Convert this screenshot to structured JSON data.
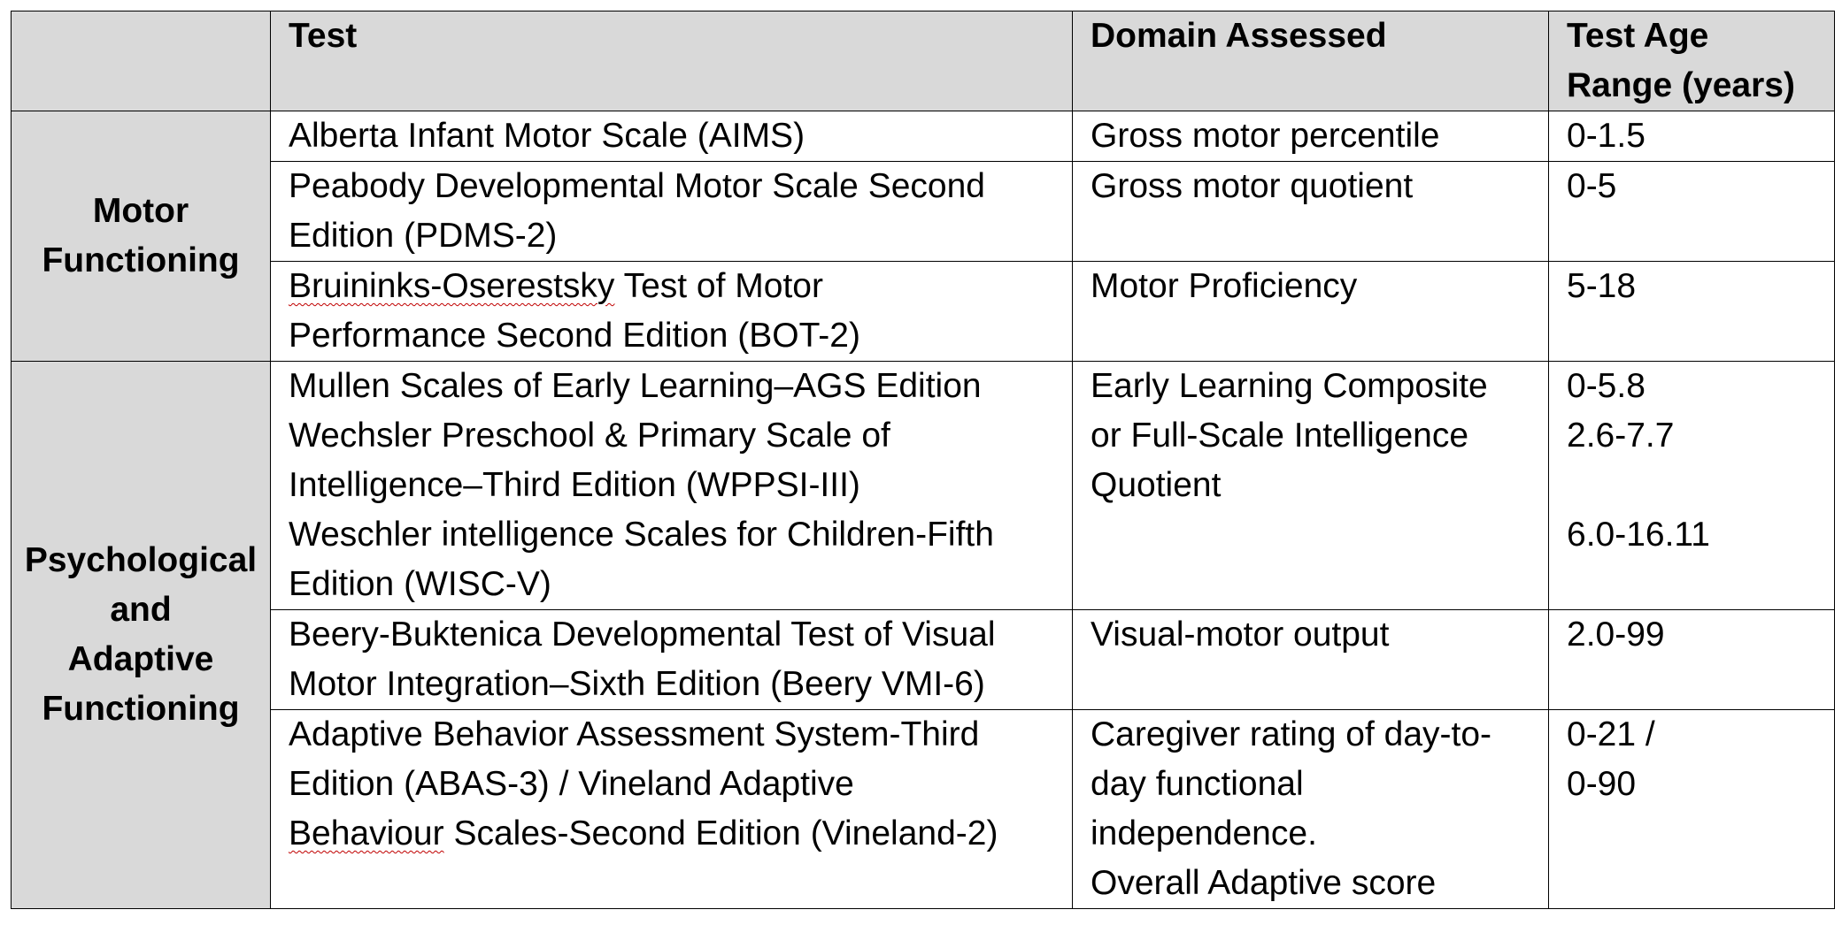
{
  "headers": {
    "test": "Test",
    "domain": "Domain Assessed",
    "age_line1": "Test Age",
    "age_line2": "Range (years)"
  },
  "categories": {
    "motor_line1": "Motor",
    "motor_line2": "Functioning",
    "psych_line1": "Psychological",
    "psych_line2": "and",
    "psych_line3": "Adaptive",
    "psych_line4": "Functioning"
  },
  "rows": [
    {
      "test": [
        "Alberta Infant Motor Scale (AIMS)"
      ],
      "domain": [
        "Gross motor percentile"
      ],
      "age": [
        "0-1.5"
      ]
    },
    {
      "test": [
        "Peabody Developmental Motor Scale Second",
        "Edition (PDMS-2)"
      ],
      "domain": [
        "Gross motor quotient"
      ],
      "age": [
        "0-5"
      ]
    },
    {
      "test_first_word": "Bruininks-Oserestsky",
      "test": [
        " Test of Motor",
        "Performance Second Edition (BOT-2)"
      ],
      "domain": [
        "Motor Proficiency"
      ],
      "age": [
        "5-18"
      ]
    },
    {
      "test": [
        "Mullen Scales of Early Learning–AGS Edition",
        "Wechsler Preschool & Primary Scale of",
        "Intelligence–Third Edition (WPPSI-III)",
        "Weschler intelligence Scales for Children-Fifth",
        "Edition (WISC-V)"
      ],
      "domain": [
        "Early Learning Composite",
        "or Full-Scale Intelligence",
        "Quotient"
      ],
      "age": [
        "0-5.8",
        "2.6-7.7",
        "",
        "6.0-16.11"
      ]
    },
    {
      "test": [
        "Beery-Buktenica Developmental Test of Visual",
        "Motor Integration–Sixth Edition (Beery VMI-6)"
      ],
      "domain": [
        "Visual-motor output"
      ],
      "age": [
        "2.0-99"
      ]
    },
    {
      "test": [
        "Adaptive Behavior Assessment System-Third",
        "Edition (ABAS-3) / Vineland Adaptive"
      ],
      "test_last_word": "Behaviour",
      "test_last_rest": " Scales-Second Edition (Vineland-2)",
      "domain": [
        "Caregiver rating of day-to-",
        "day functional",
        "independence.",
        "Overall Adaptive score"
      ],
      "age": [
        "0-21 /",
        "0-90"
      ]
    }
  ]
}
